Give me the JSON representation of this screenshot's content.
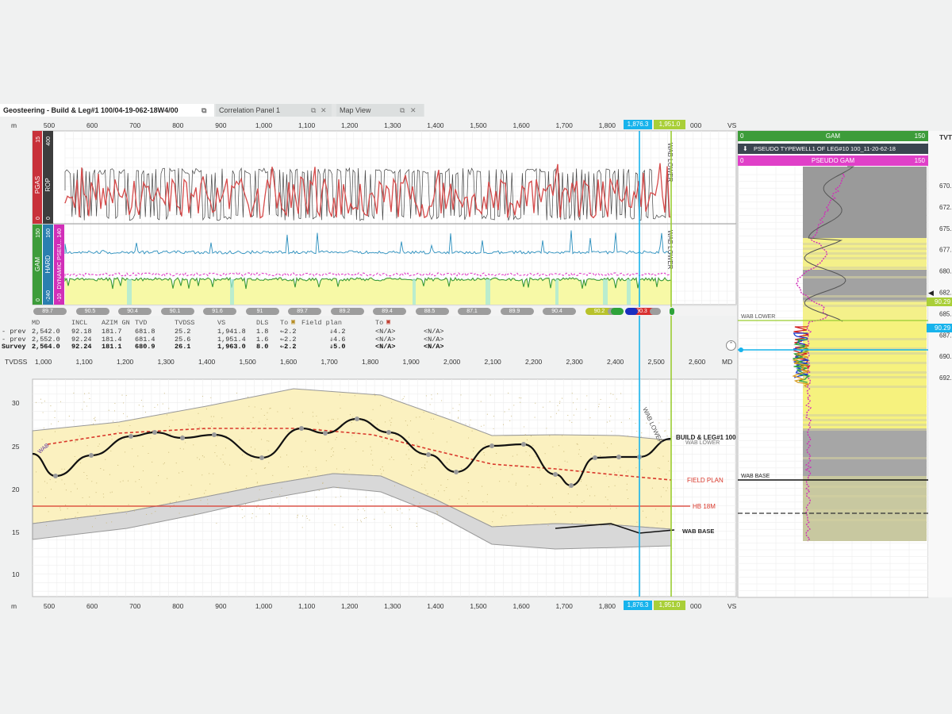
{
  "tabs": [
    {
      "label": "Geosteering - Build & Leg#1 100/04-19-062-18W4/00"
    },
    {
      "label": "Correlation Panel 1"
    },
    {
      "label": "Map View"
    }
  ],
  "vs_axis": {
    "unit": "m",
    "end_label": "VS",
    "ticks": [
      "500",
      "600",
      "700",
      "800",
      "900",
      "1,000",
      "1,100",
      "1,200",
      "1,300",
      "1,400",
      "1,500",
      "1,600",
      "1,700",
      "1,800"
    ],
    "tail_label": "000",
    "marker_blue": "1,876.3",
    "marker_green": "1,951.0"
  },
  "md_axis": {
    "left_label": "TVDSS",
    "end_label": "MD",
    "ticks": [
      "1,000",
      "1,100",
      "1,200",
      "1,300",
      "1,400",
      "1,500",
      "1,600",
      "1,700",
      "1,800",
      "1,900",
      "2,000",
      "2,100",
      "2,200",
      "2,300",
      "2,400",
      "2,500",
      "2,600"
    ]
  },
  "tvdss_ticks": [
    "30",
    "25",
    "20",
    "15",
    "10"
  ],
  "track_labels": {
    "pgas": "PGAS",
    "rop": "ROP",
    "gam": "GAM",
    "hard": "HARD",
    "dyn": "DYNAMIC PSEU...",
    "pgas_hi": "15",
    "pgas_lo": "0",
    "rop_hi": "400",
    "rop_lo": "0",
    "gam_hi": "150",
    "gam_lo": "0",
    "hard_hi": "160",
    "hard_lo": "-240",
    "dyn_hi": "140",
    "dyn_lo": "-10"
  },
  "log_markers": {
    "wab_lower": "WAB LOWER"
  },
  "inclination_pills": [
    "89.7",
    "90.5",
    "90.4",
    "90.1",
    "91.6",
    "91",
    "89.7",
    "89.2",
    "89.4",
    "88.5",
    "87.1",
    "89.9",
    "90.4",
    "90.2",
    "90.3"
  ],
  "survey": {
    "headers": [
      "MD",
      "INCL",
      "AZIM GN",
      "TVD",
      "TVDSS",
      "VS",
      "DLS",
      "To",
      "Field plan",
      "To"
    ],
    "rows": [
      {
        "label": "- prev",
        "md": "2,542.0",
        "incl": "92.18",
        "azim": "181.7",
        "tvd": "681.8",
        "tvdss": "25.2",
        "vs": "1,941.8",
        "dls": "1.8",
        "to": "2.2",
        "fp": "4.2",
        "to2": "<N/A>",
        "na": "<N/A>"
      },
      {
        "label": "- prev",
        "md": "2,552.0",
        "incl": "92.24",
        "azim": "181.4",
        "tvd": "681.4",
        "tvdss": "25.6",
        "vs": "1,951.4",
        "dls": "1.6",
        "to": "2.2",
        "fp": "4.6",
        "to2": "<N/A>",
        "na": "<N/A>"
      },
      {
        "label": "Survey",
        "md": "2,564.0",
        "incl": "92.24",
        "azim": "181.1",
        "tvd": "680.9",
        "tvdss": "26.1",
        "vs": "1,963.0",
        "dls": "8.0",
        "to": "2.2",
        "fp": "5.0",
        "to2": "<N/A>",
        "na": "<N/A>"
      }
    ]
  },
  "section_labels": {
    "build_leg": "BUILD & LEG#1 100",
    "wab_lower": "WAB LOWER",
    "field_plan": "FIELD PLAN",
    "hb": "HB 18M",
    "wab_base": "WAB BASE",
    "wab_lower_rot": "WAB LOWER",
    "start": "WAB"
  },
  "typewell": {
    "gam_label": "GAM",
    "gam_lo": "0",
    "gam_hi": "150",
    "title": "PSEUDO TYPEWELL1 OF LEG#10 100_11-20-62-18",
    "pseudo_label": "PSEUDO GAM",
    "pseudo_lo": "0",
    "pseudo_hi": "150",
    "tvt_label": "TVT",
    "depth_ticks": [
      "670.",
      "672.",
      "675.",
      "677.",
      "680.",
      "682.",
      "685.",
      "687.",
      "690.",
      "692."
    ],
    "wab_lower": "WAB LOWER",
    "wab_base": "WAB BASE",
    "flag_1": "90.29",
    "flag_2": "90.29"
  },
  "colors": {
    "sand_fill": "#fbf3c4",
    "shale_fill": "#d9d9d9",
    "blue_marker": "#17b3ec",
    "green_marker": "#9acd32",
    "field_plan": "#d9382b",
    "hb_line": "#d9382b",
    "gam_header": "#3d9c3a",
    "pseudo_header": "#e040c8"
  }
}
